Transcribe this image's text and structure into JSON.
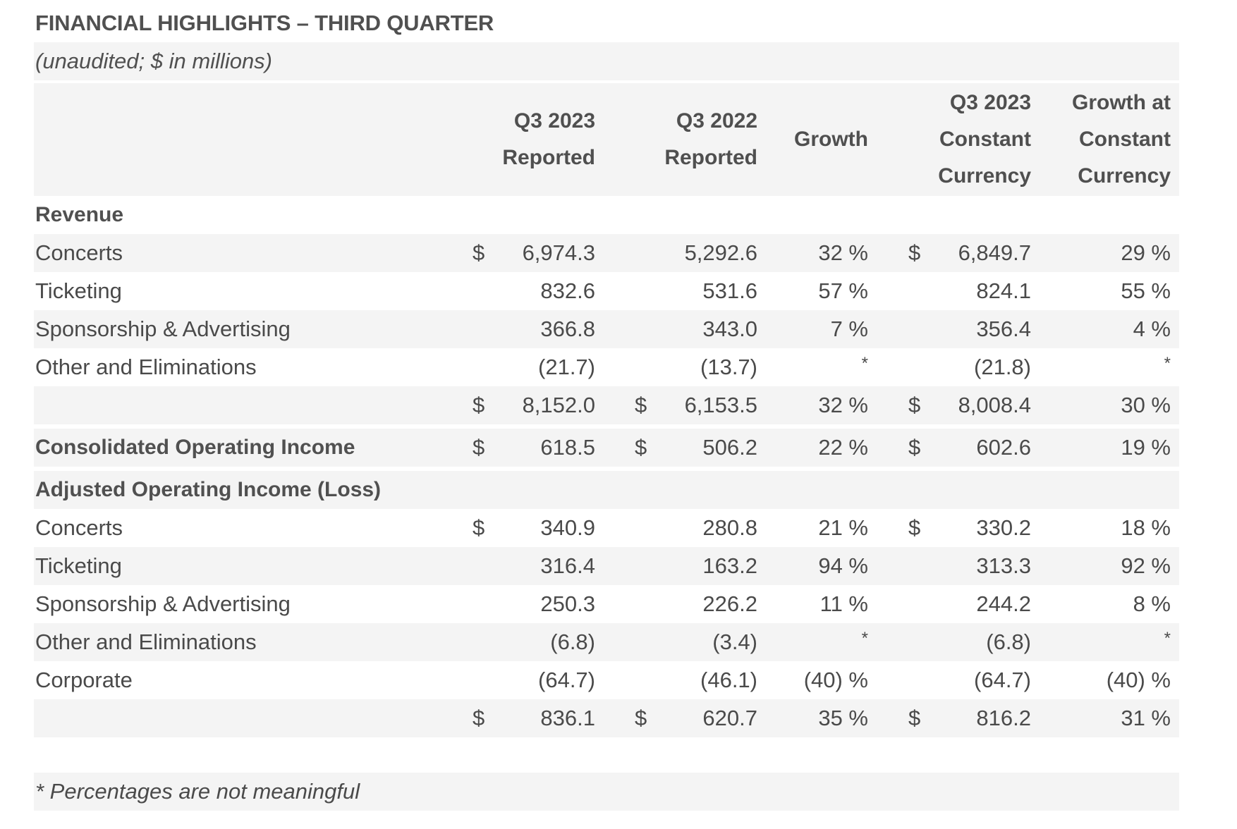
{
  "title": "FINANCIAL HIGHLIGHTS – THIRD QUARTER",
  "subtitle": "(unaudited; $ in millions)",
  "headers": {
    "q3_2023_reported": [
      "Q3 2023",
      "Reported"
    ],
    "q3_2022_reported": [
      "Q3 2022",
      "Reported"
    ],
    "growth": [
      "Growth"
    ],
    "q3_2023_cc": [
      "Q3 2023",
      "Constant",
      "Currency"
    ],
    "growth_cc": [
      "Growth at",
      "Constant",
      "Currency"
    ]
  },
  "rows": [
    {
      "label": "Revenue",
      "bold": true,
      "shade": false
    },
    {
      "label": "Concerts",
      "d1": "$",
      "v1": "6,974.3",
      "d2": "",
      "v2": "5,292.6",
      "g": "32 %",
      "d4": "$",
      "v4": "6,849.7",
      "gc": "29 %",
      "shade": true
    },
    {
      "label": "Ticketing",
      "d1": "",
      "v1": "832.6",
      "d2": "",
      "v2": "531.6",
      "g": "57 %",
      "d4": "",
      "v4": "824.1",
      "gc": "55 %",
      "shade": false
    },
    {
      "label": "Sponsorship & Advertising",
      "d1": "",
      "v1": "366.8",
      "d2": "",
      "v2": "343.0",
      "g": "7 %",
      "d4": "",
      "v4": "356.4",
      "gc": "4 %",
      "shade": true
    },
    {
      "label": "Other and Eliminations",
      "d1": "",
      "v1": "(21.7)",
      "d2": "",
      "v2": "(13.7)",
      "g": "*",
      "d4": "",
      "v4": "(21.8)",
      "gc": "*",
      "shade": false
    },
    {
      "label": "",
      "d1": "$",
      "v1": "8,152.0",
      "d2": "$",
      "v2": "6,153.5",
      "g": "32 %",
      "d4": "$",
      "v4": "8,008.4",
      "gc": "30 %",
      "shade": true
    },
    {
      "label": "Consolidated Operating Income",
      "bold": true,
      "d1": "$",
      "v1": "618.5",
      "d2": "$",
      "v2": "506.2",
      "g": "22 %",
      "d4": "$",
      "v4": "602.6",
      "gc": "19 %",
      "shade": true
    },
    {
      "label": "Adjusted Operating Income (Loss)",
      "bold": true,
      "shade": true
    },
    {
      "label": "Concerts",
      "d1": "$",
      "v1": "340.9",
      "d2": "",
      "v2": "280.8",
      "g": "21 %",
      "d4": "$",
      "v4": "330.2",
      "gc": "18 %",
      "shade": false
    },
    {
      "label": "Ticketing",
      "d1": "",
      "v1": "316.4",
      "d2": "",
      "v2": "163.2",
      "g": "94 %",
      "d4": "",
      "v4": "313.3",
      "gc": "92 %",
      "shade": true
    },
    {
      "label": "Sponsorship & Advertising",
      "d1": "",
      "v1": "250.3",
      "d2": "",
      "v2": "226.2",
      "g": "11 %",
      "d4": "",
      "v4": "244.2",
      "gc": "8 %",
      "shade": false
    },
    {
      "label": "Other and Eliminations",
      "d1": "",
      "v1": "(6.8)",
      "d2": "",
      "v2": "(3.4)",
      "g": "*",
      "d4": "",
      "v4": "(6.8)",
      "gc": "*",
      "shade": true
    },
    {
      "label": "Corporate",
      "d1": "",
      "v1": "(64.7)",
      "d2": "",
      "v2": "(46.1)",
      "g": "(40) %",
      "d4": "",
      "v4": "(64.7)",
      "gc": "(40) %",
      "shade": false
    },
    {
      "label": "",
      "d1": "$",
      "v1": "836.1",
      "d2": "$",
      "v2": "620.7",
      "g": "35 %",
      "d4": "$",
      "v4": "816.2",
      "gc": "31 %",
      "shade": true
    }
  ],
  "footnote": "* Percentages are not meaningful"
}
